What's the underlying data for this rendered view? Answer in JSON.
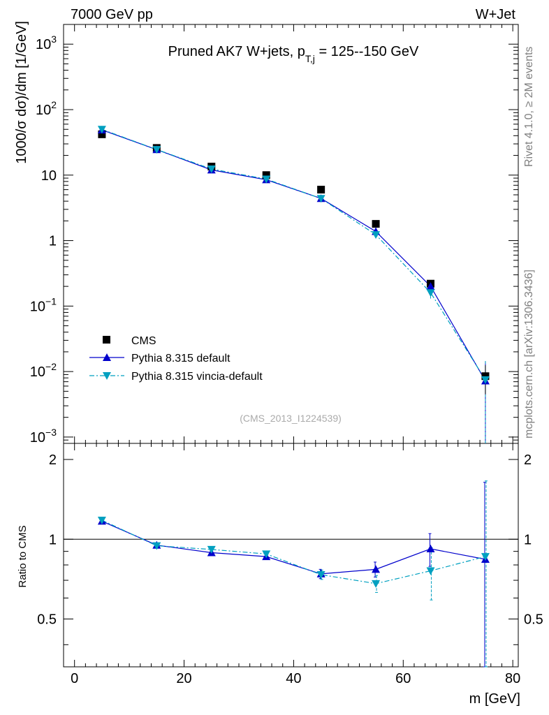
{
  "header": {
    "energy_label": "7000 GeV pp",
    "process_label": "W+Jet"
  },
  "side_labels": {
    "rivet": "Rivet 4.1.0, ≥ 2M events",
    "mcplots": "mcplots.cern.ch [arXiv:1306.3436]"
  },
  "chart_data": {
    "type": "scatter",
    "title": "Pruned AK7 W+jets, p",
    "title_sub": "T,j",
    "title_tail": " = 125--150 GeV",
    "analysis_tag": "(CMS_2013_I1224539)",
    "xlabel": "m [GeV]",
    "ylabel": "1000/σ  dσ)/dm [1/GeV]",
    "ratio_ylabel": "Ratio to CMS",
    "xlim": [
      -2,
      81
    ],
    "ylim": [
      0.0008,
      2000
    ],
    "ratio_ylim": [
      0.33,
      2.3
    ],
    "x_ticks": [
      0,
      20,
      40,
      60,
      80
    ],
    "x_tick_labels": [
      "0",
      "20",
      "40",
      "60",
      "80"
    ],
    "y_ticks": [
      {
        "value": 0.001,
        "base": "10",
        "exp": "−3"
      },
      {
        "value": 0.01,
        "base": "10",
        "exp": "−2"
      },
      {
        "value": 0.1,
        "base": "10",
        "exp": "−1"
      },
      {
        "value": 1,
        "base": "1",
        "exp": ""
      },
      {
        "value": 10,
        "base": "10",
        "exp": ""
      },
      {
        "value": 100,
        "base": "10",
        "exp": "2"
      },
      {
        "value": 1000,
        "base": "10",
        "exp": "3"
      }
    ],
    "ratio_ticks": [
      {
        "value": 0.5,
        "label": "0.5"
      },
      {
        "value": 1,
        "label": "1"
      },
      {
        "value": 2,
        "label": "2"
      }
    ],
    "legend_position": "bottom-left",
    "x": [
      5,
      15,
      25,
      35,
      45,
      55,
      65,
      75
    ],
    "series": [
      {
        "name": "CMS",
        "color": "#000000",
        "values": [
          42,
          26,
          13.5,
          10,
          6,
          1.8,
          0.22,
          0.0085
        ],
        "errors": [
          2.5,
          1.5,
          0.8,
          0.6,
          0.35,
          0.12,
          0.025,
          0.004
        ],
        "ratio": [
          1,
          1,
          1,
          1,
          1,
          1,
          1,
          1
        ]
      },
      {
        "name": "Pythia 8.315 default",
        "color": "#0000cc",
        "values": [
          49,
          24.5,
          12,
          8.5,
          4.4,
          1.38,
          0.2,
          0.0072
        ],
        "errors": [
          0.5,
          0.3,
          0.2,
          0.15,
          0.1,
          0.05,
          0.02,
          0.007
        ],
        "ratio": [
          1.17,
          0.95,
          0.89,
          0.86,
          0.74,
          0.77,
          0.92,
          0.84
        ],
        "ratio_err": [
          0.01,
          0.01,
          0.01,
          0.015,
          0.03,
          0.05,
          0.13,
          0.8
        ]
      },
      {
        "name": "Pythia 8.315 vincia-default",
        "color": "#00a0c0",
        "values": [
          50,
          24.6,
          12.4,
          8.7,
          4.4,
          1.23,
          0.16,
          0.0075
        ],
        "errors": [
          0.5,
          0.3,
          0.2,
          0.15,
          0.1,
          0.05,
          0.03,
          0.007
        ],
        "ratio": [
          1.18,
          0.945,
          0.915,
          0.88,
          0.735,
          0.68,
          0.76,
          0.86
        ],
        "ratio_err": [
          0.01,
          0.01,
          0.01,
          0.015,
          0.03,
          0.05,
          0.17,
          0.8
        ]
      }
    ]
  }
}
